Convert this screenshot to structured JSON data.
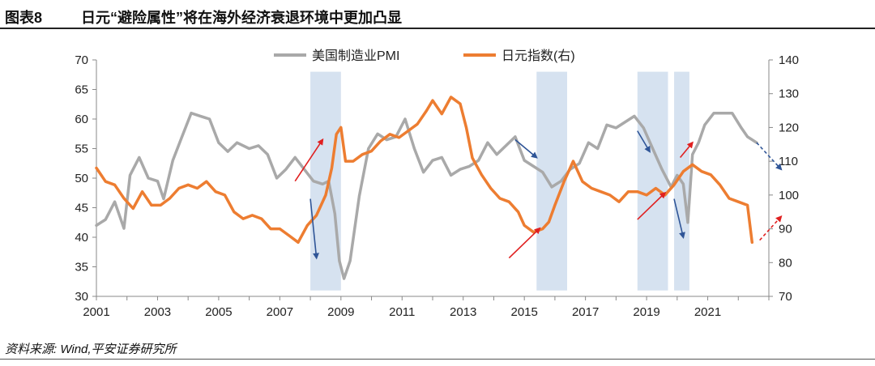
{
  "figure": {
    "number": "图表8",
    "title": "日元“避险属性”将在海外经济衰退环境中更加凸显"
  },
  "source": "资料来源: Wind,平安证券研究所",
  "colors": {
    "pmi": "#a9a9a9",
    "jpy": "#ed7d31",
    "shade": "#d6e2f0",
    "blue_arrow": "#2f5597",
    "red_arrow": "#e02020"
  },
  "chart_data": {
    "type": "line",
    "title": "",
    "x_ticks": [
      "2001",
      "2003",
      "2005",
      "2007",
      "2009",
      "2011",
      "2013",
      "2015",
      "2017",
      "2019",
      "2021"
    ],
    "x_range": [
      2001,
      2023
    ],
    "y_left": {
      "ticks": [
        "30",
        "35",
        "40",
        "45",
        "50",
        "55",
        "60",
        "65",
        "70"
      ],
      "range": [
        30,
        70
      ]
    },
    "y_right": {
      "ticks": [
        "70",
        "80",
        "90",
        "100",
        "110",
        "120",
        "130",
        "140"
      ],
      "range": [
        70,
        140
      ]
    },
    "legend": [
      "美国制造业PMI",
      "日元指数(右)"
    ],
    "legend_position": "top-center",
    "shaded_periods": [
      [
        2008.0,
        2009.0
      ],
      [
        2015.4,
        2016.4
      ],
      [
        2018.7,
        2019.7
      ],
      [
        2019.9,
        2020.4
      ]
    ],
    "series": [
      {
        "name": "美国制造业PMI",
        "axis": "left",
        "x": [
          2001.0,
          2001.3,
          2001.6,
          2001.9,
          2002.1,
          2002.4,
          2002.7,
          2003.0,
          2003.2,
          2003.5,
          2003.8,
          2004.1,
          2004.4,
          2004.7,
          2005.0,
          2005.3,
          2005.6,
          2006.0,
          2006.3,
          2006.6,
          2006.9,
          2007.2,
          2007.5,
          2007.8,
          2008.1,
          2008.4,
          2008.6,
          2008.8,
          2008.95,
          2009.1,
          2009.3,
          2009.6,
          2009.9,
          2010.2,
          2010.5,
          2010.8,
          2011.1,
          2011.4,
          2011.7,
          2012.0,
          2012.3,
          2012.6,
          2012.9,
          2013.2,
          2013.5,
          2013.8,
          2014.1,
          2014.4,
          2014.7,
          2015.0,
          2015.3,
          2015.6,
          2015.9,
          2016.2,
          2016.5,
          2016.8,
          2017.1,
          2017.4,
          2017.7,
          2018.0,
          2018.3,
          2018.6,
          2018.9,
          2019.2,
          2019.5,
          2019.8,
          2020.0,
          2020.2,
          2020.35,
          2020.5,
          2020.7,
          2020.9,
          2021.2,
          2021.5,
          2021.8,
          2022.1,
          2022.3,
          2022.6
        ],
        "values": [
          42.0,
          43.0,
          46.0,
          41.5,
          50.5,
          53.5,
          50.0,
          49.5,
          46.5,
          53.0,
          57.0,
          61.0,
          60.5,
          60.0,
          56.0,
          54.5,
          56.0,
          55.0,
          55.5,
          54.0,
          50.0,
          51.5,
          53.5,
          51.5,
          49.5,
          49.0,
          49.5,
          44.0,
          36.0,
          33.0,
          36.0,
          47.0,
          55.0,
          57.5,
          56.5,
          57.0,
          60.0,
          55.0,
          51.0,
          53.0,
          53.5,
          50.5,
          51.5,
          52.0,
          53.0,
          56.0,
          54.0,
          55.5,
          57.0,
          53.0,
          52.0,
          51.0,
          48.5,
          49.5,
          51.5,
          52.5,
          56.0,
          55.0,
          59.0,
          58.5,
          59.5,
          60.5,
          58.5,
          55.0,
          51.5,
          48.5,
          50.5,
          49.0,
          42.5,
          54.0,
          56.0,
          59.0,
          61.0,
          61.0,
          61.0,
          58.5,
          57.0,
          56.0
        ]
      },
      {
        "name": "日元指数(右)",
        "axis": "right",
        "x": [
          2001.0,
          2001.3,
          2001.6,
          2001.9,
          2002.2,
          2002.5,
          2002.8,
          2003.1,
          2003.4,
          2003.7,
          2004.0,
          2004.3,
          2004.6,
          2004.9,
          2005.2,
          2005.5,
          2005.8,
          2006.1,
          2006.4,
          2006.7,
          2007.0,
          2007.3,
          2007.6,
          2007.9,
          2008.2,
          2008.5,
          2008.7,
          2008.85,
          2009.0,
          2009.15,
          2009.4,
          2009.7,
          2010.0,
          2010.3,
          2010.6,
          2010.9,
          2011.2,
          2011.5,
          2011.8,
          2012.0,
          2012.3,
          2012.6,
          2012.9,
          2013.1,
          2013.3,
          2013.6,
          2013.9,
          2014.2,
          2014.5,
          2014.8,
          2015.0,
          2015.3,
          2015.6,
          2015.8,
          2016.0,
          2016.3,
          2016.6,
          2016.9,
          2017.2,
          2017.5,
          2017.8,
          2018.1,
          2018.4,
          2018.7,
          2019.0,
          2019.3,
          2019.6,
          2019.9,
          2020.2,
          2020.5,
          2020.8,
          2021.1,
          2021.4,
          2021.7,
          2022.0,
          2022.3,
          2022.45
        ],
        "values": [
          108.0,
          104.0,
          103.0,
          99.0,
          96.0,
          101.0,
          97.0,
          97.0,
          99.0,
          102.0,
          103.0,
          102.0,
          104.0,
          101.0,
          100.0,
          95.0,
          93.0,
          94.0,
          93.0,
          90.0,
          90.0,
          88.0,
          86.0,
          91.0,
          94.0,
          100.0,
          108.0,
          118.0,
          120.0,
          110.0,
          110.0,
          112.0,
          113.0,
          116.0,
          118.0,
          117.0,
          119.0,
          121.0,
          125.0,
          128.0,
          124.0,
          129.0,
          127.0,
          120.0,
          111.0,
          106.0,
          102.0,
          99.0,
          98.0,
          95.0,
          91.0,
          89.0,
          90.0,
          92.0,
          97.0,
          104.0,
          110.0,
          104.0,
          102.0,
          101.0,
          100.0,
          98.0,
          101.0,
          101.0,
          100.0,
          102.0,
          100.0,
          103.0,
          107.0,
          109.0,
          107.0,
          106.0,
          103.0,
          99.0,
          98.0,
          97.0,
          86.0
        ]
      }
    ],
    "arrows": [
      {
        "color": "red",
        "from": [
          2007.5,
          49.5
        ],
        "to": [
          2008.4,
          56.5
        ]
      },
      {
        "color": "blue",
        "from": [
          2008.0,
          46.5
        ],
        "to": [
          2008.2,
          36.5
        ]
      },
      {
        "color": "blue",
        "from": [
          2014.7,
          56.5
        ],
        "to": [
          2015.4,
          53.5
        ]
      },
      {
        "color": "red",
        "from": [
          2014.5,
          36.5
        ],
        "to": [
          2015.5,
          41.5
        ]
      },
      {
        "color": "blue",
        "from": [
          2018.7,
          58.0
        ],
        "to": [
          2019.1,
          54.5
        ]
      },
      {
        "color": "red",
        "from": [
          2018.7,
          43.0
        ],
        "to": [
          2019.6,
          47.5
        ]
      },
      {
        "color": "blue",
        "from": [
          2019.9,
          46.5
        ],
        "to": [
          2020.2,
          40.0
        ]
      },
      {
        "color": "red",
        "from": [
          2020.1,
          53.5
        ],
        "to": [
          2020.5,
          56.0
        ]
      },
      {
        "color": "blue",
        "from": [
          2022.6,
          56.0
        ],
        "to": [
          2023.4,
          51.5
        ],
        "dashed": true
      },
      {
        "color": "red",
        "from": [
          2022.7,
          39.5
        ],
        "to": [
          2023.4,
          43.5
        ],
        "dashed": true
      }
    ]
  }
}
